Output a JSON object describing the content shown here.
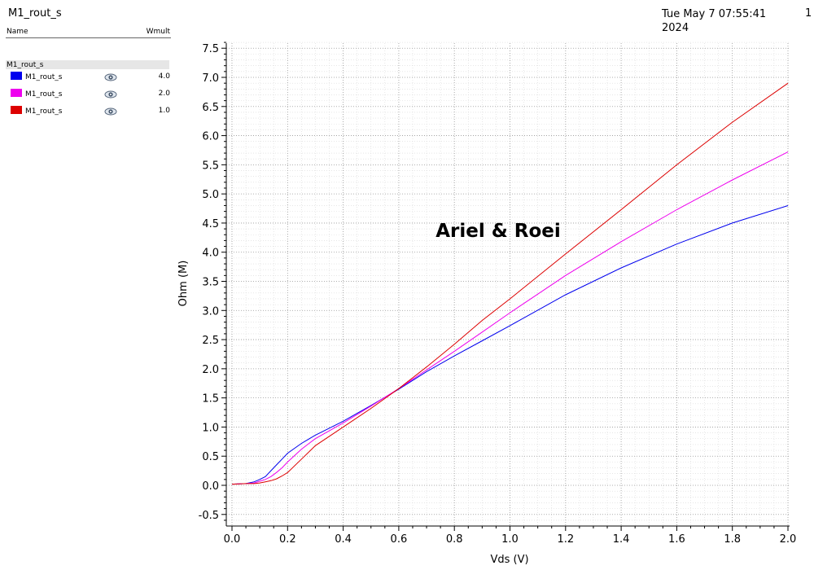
{
  "header": {
    "title": "M1_rout_s",
    "date_line1": "Tue May 7 07:55:41",
    "date_line2": "2024",
    "page": "1"
  },
  "legend": {
    "col_name": "Name",
    "col_wmult": "Wmult",
    "group": "M1_rout_s",
    "eye_icon": "eye-icon",
    "items": [
      {
        "label": "M1_rout_s",
        "value": "4.0",
        "color": "#0000ee"
      },
      {
        "label": "M1_rout_s",
        "value": "2.0",
        "color": "#ee00ee"
      },
      {
        "label": "M1_rout_s",
        "value": "1.0",
        "color": "#dd0000"
      }
    ]
  },
  "chart_data": {
    "type": "line",
    "xlabel": "Vds (V)",
    "ylabel": "Ohm (M)",
    "annotation": "Ariel & Roei",
    "xlim": [
      0.0,
      2.0
    ],
    "ylim": [
      -0.6,
      7.6
    ],
    "xticks": [
      "0.0",
      "0.2",
      "0.4",
      "0.6",
      "0.8",
      "1.0",
      "1.2",
      "1.4",
      "1.6",
      "1.8",
      "2.0"
    ],
    "yticks": [
      "-0.5",
      "0.0",
      "0.5",
      "1.0",
      "1.5",
      "2.0",
      "2.5",
      "3.0",
      "3.5",
      "4.0",
      "4.5",
      "5.0",
      "5.5",
      "6.0",
      "6.5",
      "7.0",
      "7.5"
    ],
    "grid": true,
    "series": [
      {
        "name": "M1_rout_s",
        "wmult": "4.0",
        "color": "#0000ee",
        "x": [
          0.0,
          0.05,
          0.08,
          0.1,
          0.12,
          0.14,
          0.16,
          0.18,
          0.2,
          0.25,
          0.3,
          0.4,
          0.5,
          0.6,
          0.7,
          0.8,
          0.9,
          1.0,
          1.2,
          1.4,
          1.6,
          1.8,
          2.0
        ],
        "y": [
          0.02,
          0.03,
          0.06,
          0.1,
          0.15,
          0.25,
          0.35,
          0.45,
          0.55,
          0.72,
          0.86,
          1.1,
          1.37,
          1.65,
          1.95,
          2.22,
          2.48,
          2.74,
          3.27,
          3.73,
          4.14,
          4.5,
          4.8
        ]
      },
      {
        "name": "M1_rout_s",
        "wmult": "2.0",
        "color": "#ee00ee",
        "x": [
          0.0,
          0.05,
          0.08,
          0.1,
          0.12,
          0.14,
          0.16,
          0.18,
          0.2,
          0.25,
          0.3,
          0.4,
          0.5,
          0.6,
          0.7,
          0.8,
          0.9,
          1.0,
          1.2,
          1.4,
          1.6,
          1.8,
          2.0
        ],
        "y": [
          0.02,
          0.03,
          0.04,
          0.07,
          0.1,
          0.15,
          0.22,
          0.3,
          0.4,
          0.62,
          0.8,
          1.07,
          1.36,
          1.66,
          1.98,
          2.3,
          2.63,
          2.96,
          3.6,
          4.18,
          4.73,
          5.24,
          5.72
        ]
      },
      {
        "name": "M1_rout_s",
        "wmult": "1.0",
        "color": "#dd0000",
        "x": [
          0.0,
          0.05,
          0.08,
          0.1,
          0.12,
          0.14,
          0.16,
          0.18,
          0.2,
          0.25,
          0.3,
          0.4,
          0.5,
          0.6,
          0.7,
          0.8,
          0.9,
          1.0,
          1.2,
          1.4,
          1.6,
          1.8,
          2.0
        ],
        "y": [
          0.02,
          0.03,
          0.03,
          0.04,
          0.06,
          0.08,
          0.11,
          0.16,
          0.22,
          0.45,
          0.68,
          1.0,
          1.32,
          1.66,
          2.03,
          2.42,
          2.83,
          3.2,
          3.97,
          4.73,
          5.5,
          6.23,
          6.9
        ]
      }
    ]
  }
}
